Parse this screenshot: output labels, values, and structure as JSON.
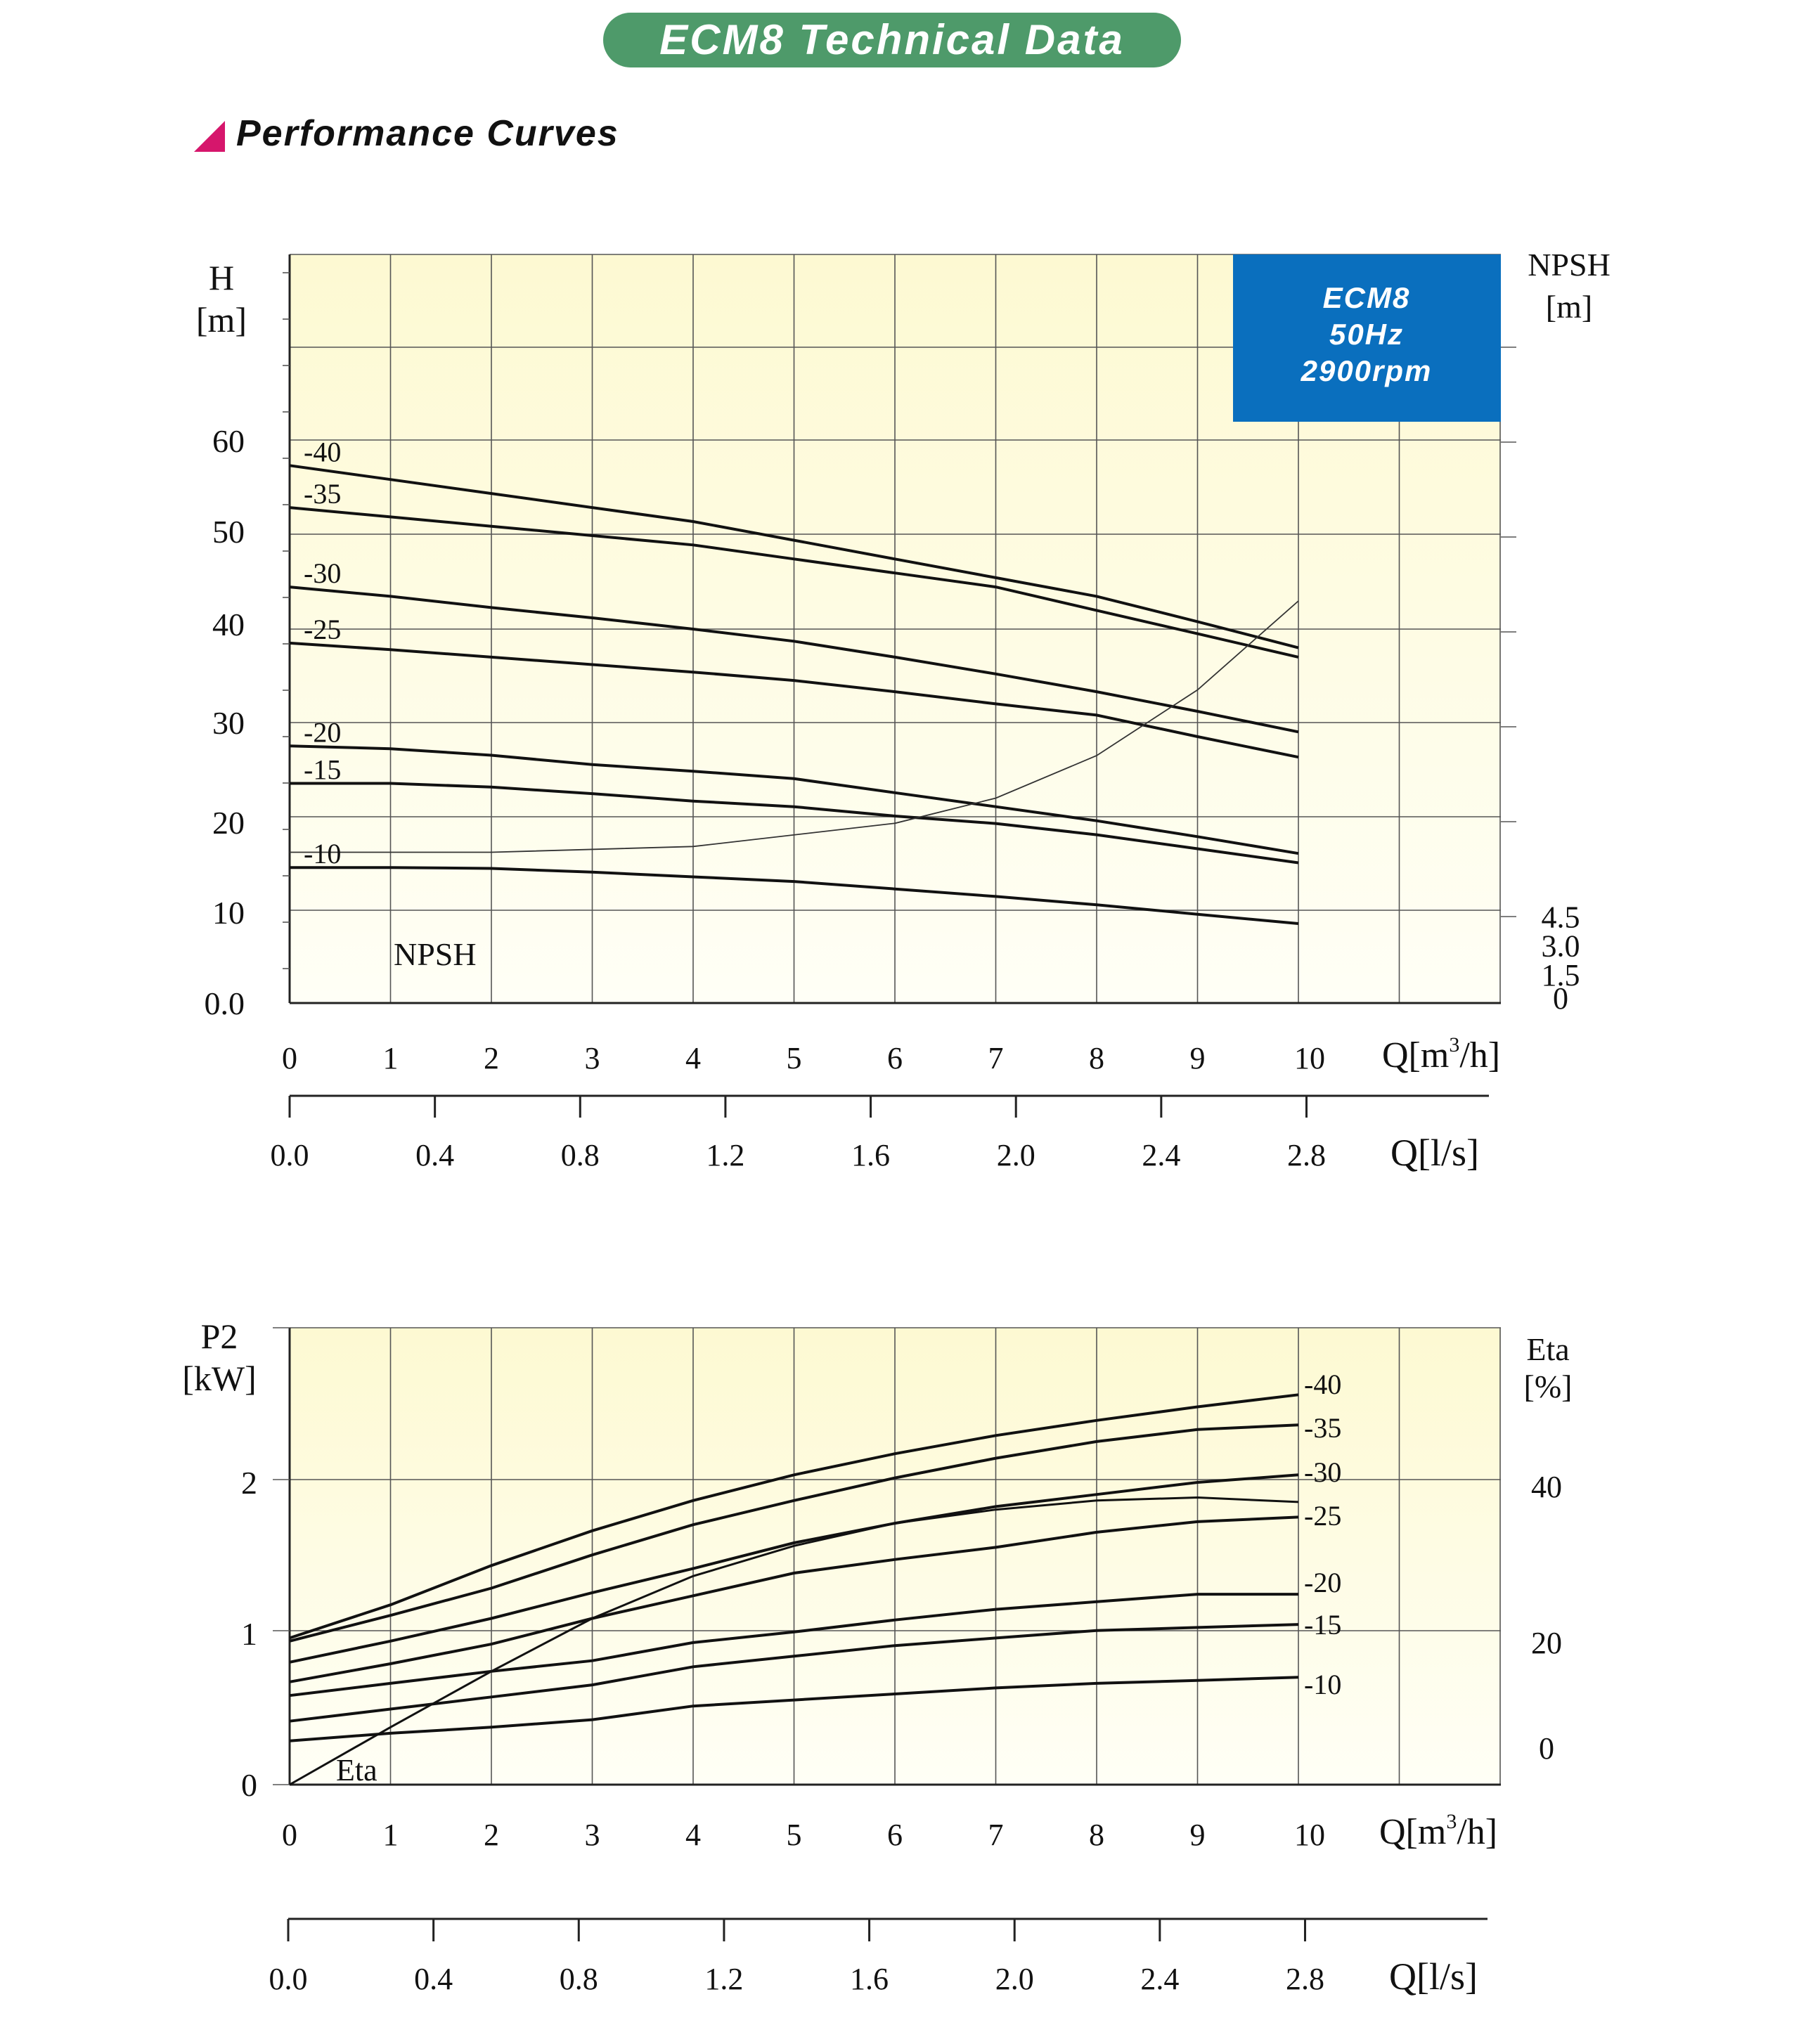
{
  "header": {
    "title": "ECM8 Technical Data",
    "section": "Performance Curves"
  },
  "colors": {
    "header_pill": "#4e9a6a",
    "section_marker": "#d6166c",
    "info_box": "#0a6fbe",
    "plot_top": "#fdf9d2",
    "plot_bottom": "#fffff6",
    "curve": "#111111"
  },
  "info_box": {
    "line1": "ECM8",
    "line2": "50Hz",
    "line3": "2900rpm"
  },
  "chart_data": [
    {
      "type": "line",
      "name": "head",
      "x_units": "Q[m³/h]",
      "x_axis": {
        "label_main": "Q[m",
        "label_sup": "3",
        "label_tail": "/h]",
        "ticks": [
          "0",
          "1",
          "2",
          "3",
          "4",
          "5",
          "6",
          "7",
          "8",
          "9",
          "10"
        ],
        "range": [
          0,
          12
        ]
      },
      "x2_axis": {
        "label": "Q[l/s]",
        "ticks": [
          "0.0",
          "0.4",
          "0.8",
          "1.2",
          "1.6",
          "2.0",
          "2.4",
          "2.8"
        ]
      },
      "y_axis": {
        "label_line1": "H",
        "label_line2": "[m]",
        "ticks": [
          "0.0",
          "10",
          "20",
          "30",
          "40",
          "50",
          "60"
        ]
      },
      "y2_axis": {
        "label_line1": "NPSH",
        "label_line2": "[m]",
        "ticks": [
          "0",
          "1.5",
          "3.0",
          "4.5"
        ]
      },
      "series": [
        {
          "name": "-40",
          "x": [
            0,
            1,
            2,
            3,
            4,
            5,
            6,
            7,
            8,
            9,
            10
          ],
          "y": [
            57.5,
            56,
            54.5,
            53,
            51.5,
            49.5,
            47.5,
            45.5,
            43.5,
            40.8,
            38
          ]
        },
        {
          "name": "-35",
          "x": [
            0,
            1,
            2,
            3,
            4,
            5,
            6,
            7,
            8,
            9,
            10
          ],
          "y": [
            53,
            52,
            51,
            50,
            49,
            47.5,
            46,
            44.5,
            42,
            39.5,
            37
          ]
        },
        {
          "name": "-30",
          "x": [
            0,
            1,
            2,
            3,
            4,
            5,
            6,
            7,
            8,
            9,
            10
          ],
          "y": [
            44.5,
            43.5,
            42.3,
            41.2,
            40,
            38.7,
            37,
            35.2,
            33.3,
            31.2,
            29
          ]
        },
        {
          "name": "-25",
          "x": [
            0,
            1,
            2,
            3,
            4,
            5,
            6,
            7,
            8,
            9,
            10
          ],
          "y": [
            38.5,
            37.8,
            37,
            36.2,
            35.4,
            34.5,
            33.3,
            32,
            30.8,
            28.5,
            26.3
          ]
        },
        {
          "name": "-20",
          "x": [
            0,
            1,
            2,
            3,
            4,
            5,
            6,
            7,
            8,
            9,
            10
          ],
          "y": [
            27.5,
            27.2,
            26.5,
            25.5,
            24.8,
            24,
            22.5,
            21,
            19.5,
            17.8,
            16
          ]
        },
        {
          "name": "-15",
          "x": [
            0,
            1,
            2,
            3,
            4,
            5,
            6,
            7,
            8,
            9,
            10
          ],
          "y": [
            23.5,
            23.5,
            23.1,
            22.4,
            21.6,
            21,
            20,
            19.2,
            18,
            16.5,
            15
          ]
        },
        {
          "name": "-10",
          "x": [
            0,
            1,
            2,
            3,
            4,
            5,
            6,
            7,
            8,
            9,
            10
          ],
          "y": [
            14.5,
            14.5,
            14.4,
            14,
            13.5,
            13,
            12.2,
            11.4,
            10.5,
            9.5,
            8.5
          ]
        }
      ],
      "npsh_curve": {
        "label": "NPSH",
        "x": [
          0,
          2,
          4,
          6,
          7,
          8,
          9,
          10
        ],
        "y": [
          7.8,
          7.8,
          8.1,
          9.3,
          10.6,
          12.8,
          16.2,
          20.8
        ]
      }
    },
    {
      "type": "line",
      "name": "power",
      "x_units": "Q[m³/h]",
      "x_axis": {
        "label_main": "Q[m",
        "label_sup": "3",
        "label_tail": "/h]",
        "ticks": [
          "0",
          "1",
          "2",
          "3",
          "4",
          "5",
          "6",
          "7",
          "8",
          "9",
          "10"
        ],
        "range": [
          0,
          12
        ]
      },
      "x2_axis": {
        "label": "Q[l/s]",
        "ticks": [
          "0.0",
          "0.4",
          "0.8",
          "1.2",
          "1.6",
          "2.0",
          "2.4",
          "2.8"
        ]
      },
      "y_axis": {
        "label_line1": "P2",
        "label_line2": "[kW]",
        "ticks": [
          "0",
          "1",
          "2"
        ]
      },
      "y2_axis": {
        "label_line1": "Eta",
        "label_line2": "[%]",
        "ticks": [
          "0",
          "20",
          "40"
        ]
      },
      "series": [
        {
          "name": "-40",
          "x": [
            0,
            1,
            2,
            3,
            4,
            5,
            6,
            7,
            8,
            9,
            10
          ],
          "y": [
            0.97,
            1.19,
            1.45,
            1.68,
            1.88,
            2.05,
            2.19,
            2.31,
            2.41,
            2.5,
            2.58
          ]
        },
        {
          "name": "-35",
          "x": [
            0,
            1,
            2,
            3,
            4,
            5,
            6,
            7,
            8,
            9,
            10
          ],
          "y": [
            0.95,
            1.12,
            1.3,
            1.52,
            1.72,
            1.88,
            2.03,
            2.16,
            2.27,
            2.35,
            2.38
          ]
        },
        {
          "name": "-30",
          "x": [
            0,
            1,
            2,
            3,
            4,
            5,
            6,
            7,
            8,
            9,
            10
          ],
          "y": [
            0.81,
            0.95,
            1.1,
            1.27,
            1.43,
            1.6,
            1.73,
            1.84,
            1.92,
            2,
            2.05
          ]
        },
        {
          "name": "-25",
          "x": [
            0,
            1,
            2,
            3,
            4,
            5,
            6,
            7,
            8,
            9,
            10
          ],
          "y": [
            0.68,
            0.8,
            0.93,
            1.1,
            1.25,
            1.4,
            1.49,
            1.57,
            1.67,
            1.74,
            1.77
          ]
        },
        {
          "name": "-20",
          "x": [
            0,
            1,
            2,
            3,
            4,
            5,
            6,
            7,
            8,
            9,
            10
          ],
          "y": [
            0.59,
            0.67,
            0.75,
            0.82,
            0.94,
            1.01,
            1.09,
            1.16,
            1.21,
            1.26,
            1.26
          ]
        },
        {
          "name": "-15",
          "x": [
            0,
            1,
            2,
            3,
            4,
            5,
            6,
            7,
            8,
            9,
            10
          ],
          "y": [
            0.42,
            0.5,
            0.58,
            0.66,
            0.78,
            0.85,
            0.92,
            0.97,
            1.02,
            1.04,
            1.06
          ]
        },
        {
          "name": "-10",
          "x": [
            0,
            1,
            2,
            3,
            4,
            5,
            6,
            7,
            8,
            9,
            10
          ],
          "y": [
            0.29,
            0.34,
            0.38,
            0.43,
            0.52,
            0.56,
            0.6,
            0.64,
            0.67,
            0.69,
            0.71
          ]
        }
      ],
      "eta_curve": {
        "label": "Eta",
        "x": [
          0,
          1,
          2,
          3,
          4,
          5,
          6,
          7,
          8,
          9,
          10
        ],
        "y": [
          0,
          0.38,
          0.75,
          1.1,
          1.38,
          1.58,
          1.73,
          1.82,
          1.88,
          1.9,
          1.87
        ]
      }
    }
  ]
}
